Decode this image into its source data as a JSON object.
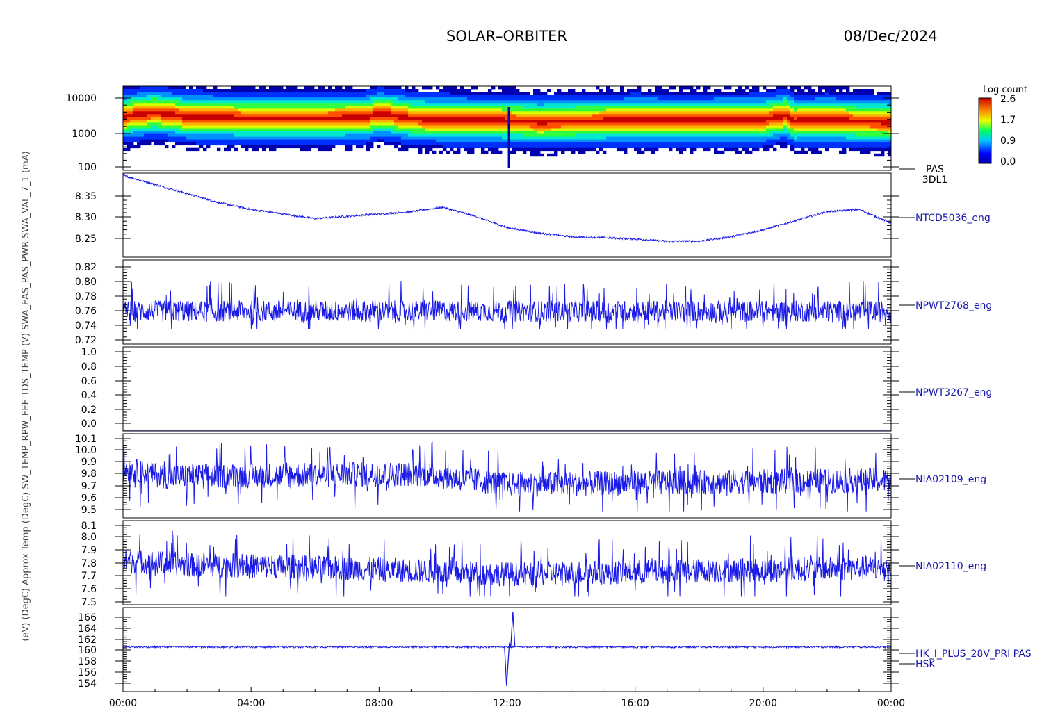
{
  "header": {
    "title": "SOLAR–ORBITER",
    "date": "08/Dec/2024"
  },
  "colorbar": {
    "title": "Log count",
    "ticks": [
      "2.6",
      "1.7",
      "0.9",
      "0.0"
    ]
  },
  "left_labels": "(eV)    (DegC)    Approx Temp (DegC)    SW_TEMP_RPW_FEE    TDS_TEMP    (V)    SWA_EAS_PAS_PWR    SWA_VAL_7_1    (mA)",
  "x_ticks": [
    "00:00",
    "04:00",
    "08:00",
    "12:00",
    "16:00",
    "20:00",
    "00:00"
  ],
  "colors": {
    "trace": "#1a1ae6",
    "label": "#1a1aaa",
    "axis": "#000000"
  },
  "chart_data": [
    {
      "type": "heatmap",
      "name": "PAS",
      "label_lines": [
        "PAS",
        "3DL1"
      ],
      "y_ticks": [
        "10000",
        "1000",
        "100"
      ],
      "y_scale": "log",
      "ylim": [
        70,
        13500
      ],
      "xlim_hours": [
        0,
        24
      ],
      "peak_energy_eV": {
        "x": [
          0,
          1,
          2,
          4,
          6,
          7.6,
          8,
          9,
          10,
          11,
          12,
          12.1,
          13,
          14,
          15,
          16,
          17,
          18,
          20,
          20.7,
          21,
          22,
          23,
          24
        ],
        "y": [
          2000,
          2600,
          2000,
          1800,
          1800,
          1900,
          2400,
          1800,
          1650,
          1600,
          1550,
          1550,
          1450,
          1500,
          1550,
          1650,
          1600,
          1600,
          1650,
          2150,
          1550,
          1650,
          1500,
          1450
        ]
      },
      "spike_hour": 12.05
    },
    {
      "type": "line",
      "name": "NTCD5036_eng",
      "y_ticks": [
        "8.35",
        "8.30",
        "8.25"
      ],
      "ylim": [
        8.205,
        8.39
      ],
      "x_hours": [
        0,
        1,
        2,
        3,
        4,
        5,
        6,
        7,
        8,
        9,
        10,
        11,
        12,
        13,
        14,
        15,
        16,
        17,
        18,
        19,
        20,
        21,
        22,
        23,
        24
      ],
      "values": [
        8.385,
        8.365,
        8.345,
        8.325,
        8.31,
        8.3,
        8.29,
        8.295,
        8.3,
        8.305,
        8.315,
        8.295,
        8.27,
        8.258,
        8.25,
        8.248,
        8.245,
        8.24,
        8.24,
        8.25,
        8.265,
        8.285,
        8.305,
        8.31,
        8.28
      ],
      "noise": 0.002
    },
    {
      "type": "line",
      "name": "NPWT2768_eng",
      "y_ticks": [
        "0.82",
        "0.80",
        "0.78",
        "0.76",
        "0.74",
        "0.72"
      ],
      "ylim": [
        0.715,
        0.825
      ],
      "x_hours": [
        0,
        24
      ],
      "values": [
        0.758,
        0.758
      ],
      "spread": [
        0.735,
        0.815
      ],
      "dense": true
    },
    {
      "type": "line",
      "name": "NPWT3267_eng",
      "y_ticks": [
        "1.0",
        "0.8",
        "0.6",
        "0.4",
        "0.2",
        "0.0"
      ],
      "ylim": [
        -0.01,
        1.0
      ],
      "x_hours": [
        0,
        24
      ],
      "values": [
        0.0,
        0.0
      ]
    },
    {
      "type": "line",
      "name": "NIA02109_eng",
      "y_ticks": [
        "10.1",
        "10.0",
        "9.9",
        "9.8",
        "9.7",
        "9.6",
        "9.5"
      ],
      "ylim": [
        9.45,
        10.1
      ],
      "x_hours": [
        0,
        1.3,
        9.3,
        12,
        24
      ],
      "values": [
        9.83,
        9.77,
        9.79,
        9.71,
        9.74
      ],
      "spread": [
        9.5,
        10.05
      ],
      "dense": true
    },
    {
      "type": "line",
      "name": "NIA02110_eng",
      "y_ticks": [
        "8.1",
        "8.0",
        "7.9",
        "7.8",
        "7.7",
        "7.6",
        "7.5"
      ],
      "ylim": [
        7.47,
        8.1
      ],
      "x_hours": [
        0,
        2,
        6,
        12,
        22,
        24
      ],
      "values": [
        7.8,
        7.77,
        7.75,
        7.7,
        7.74,
        7.75
      ],
      "spread": [
        7.53,
        8.05
      ],
      "dense": true
    },
    {
      "type": "line",
      "name": "HK_I_PLUS_28V_PRI PAS",
      "label_lines": [
        "HK_I_PLUS_28V_PRI PAS",
        "HSK"
      ],
      "y_ticks": [
        "166",
        "164",
        "162",
        "160",
        "158",
        "156",
        "154"
      ],
      "ylim": [
        152.5,
        167
      ],
      "x_hours": [
        0,
        24
      ],
      "values": [
        160.2,
        160.2
      ],
      "spike": {
        "x_hours": 12.05,
        "low": 153.5,
        "high": 166.2
      }
    }
  ]
}
